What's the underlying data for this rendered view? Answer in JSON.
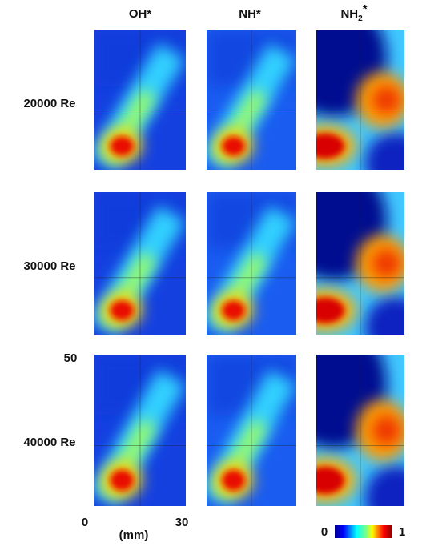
{
  "columns": [
    "OH*",
    "NH*",
    {
      "base": "NH",
      "sub": "2",
      "sup": "*"
    }
  ],
  "rows": [
    "20000 Re",
    "30000 Re",
    "40000 Re"
  ],
  "axis": {
    "y_top": "50",
    "x_left": "0",
    "x_right": "30",
    "x_unit": "(mm)"
  },
  "colorbar": {
    "min": "0",
    "max": "1"
  }
}
